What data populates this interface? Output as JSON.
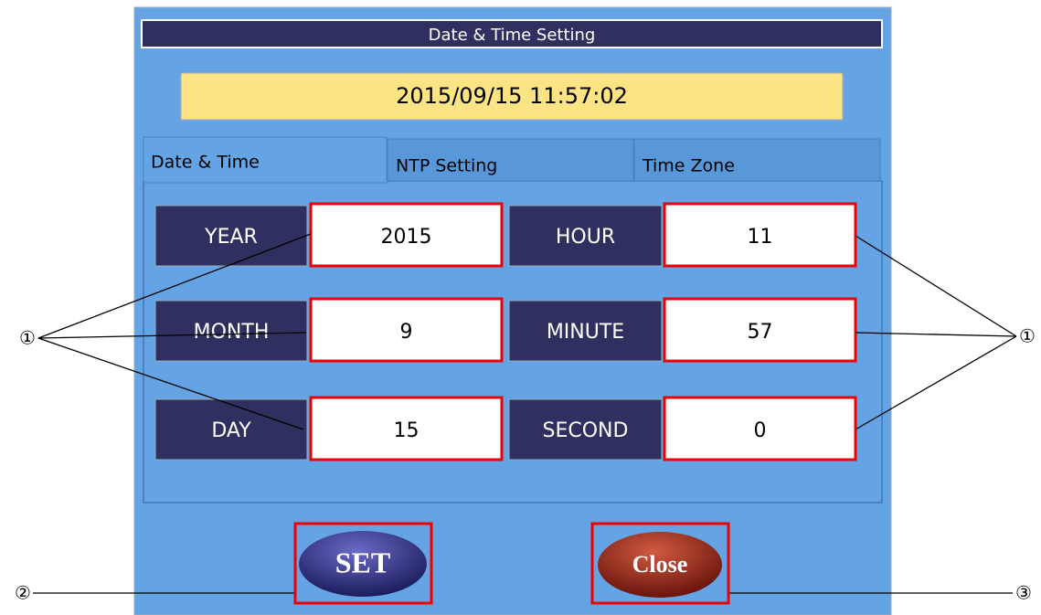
{
  "header": {
    "title": "Date & Time Setting"
  },
  "display": {
    "datetime": "2015/09/15 11:57:02"
  },
  "tabs": [
    "Date & Time",
    "NTP Setting",
    "Time Zone"
  ],
  "fields": {
    "left": [
      {
        "label": "YEAR",
        "value": "2015"
      },
      {
        "label": "MONTH",
        "value": "9"
      },
      {
        "label": "DAY",
        "value": "15"
      }
    ],
    "right": [
      {
        "label": "HOUR",
        "value": "11"
      },
      {
        "label": "MINUTE",
        "value": "57"
      },
      {
        "label": "SECOND",
        "value": "0"
      }
    ]
  },
  "buttons": {
    "set": "SET",
    "close": "Close"
  },
  "callouts": {
    "fields_left": "①",
    "fields_right": "①",
    "set": "②",
    "close": "③"
  }
}
